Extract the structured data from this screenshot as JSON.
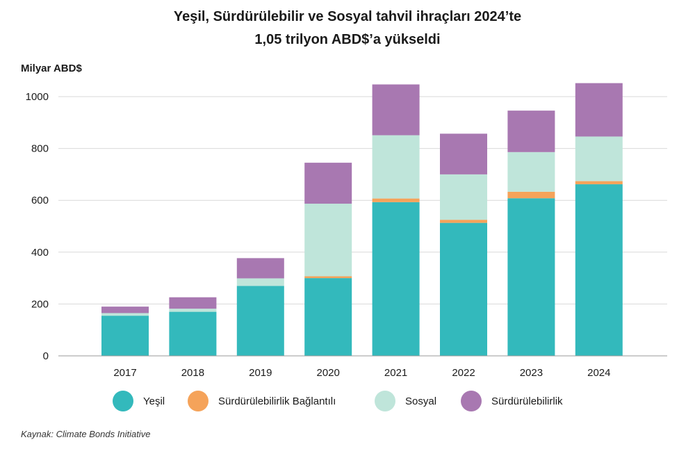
{
  "title_line1": "Yeşil, Sürdürülebilir ve Sosyal tahvil ihraçları 2024’te",
  "title_line2": "1,05 trilyon ABD$’a yükseldi",
  "source": "Kaynak: Climate Bonds Initiative",
  "colors": {
    "green": "#33b9bc",
    "slb": "#f5a35a",
    "social": "#bfe5da",
    "sustainability": "#a878b1",
    "grid": "#d9d9d9",
    "axis": "#9a9a9a"
  },
  "chart_data": {
    "type": "bar",
    "stacked": true,
    "ylabel": "Milyar ABD$",
    "ylim": [
      0,
      1000
    ],
    "yticks": [
      0,
      200,
      400,
      600,
      800,
      1000
    ],
    "grid": true,
    "legend_position": "bottom",
    "categories": [
      "2017",
      "2018",
      "2019",
      "2020",
      "2021",
      "2022",
      "2023",
      "2024"
    ],
    "series": [
      {
        "name": "Yeşil",
        "color": "#33b9bc",
        "values": [
          155,
          170,
          270,
          300,
          593,
          513,
          608,
          662
        ]
      },
      {
        "name": "Sürdürülebilirlik Bağlantılı",
        "color": "#f5a35a",
        "values": [
          0,
          0,
          0,
          7,
          14,
          12,
          25,
          12
        ]
      },
      {
        "name": "Sosyal",
        "color": "#bfe5da",
        "values": [
          10,
          12,
          29,
          280,
          244,
          175,
          153,
          172
        ]
      },
      {
        "name": "Sürdürülebilirlik",
        "color": "#a878b1",
        "values": [
          25,
          44,
          78,
          158,
          196,
          157,
          160,
          206
        ]
      }
    ]
  }
}
